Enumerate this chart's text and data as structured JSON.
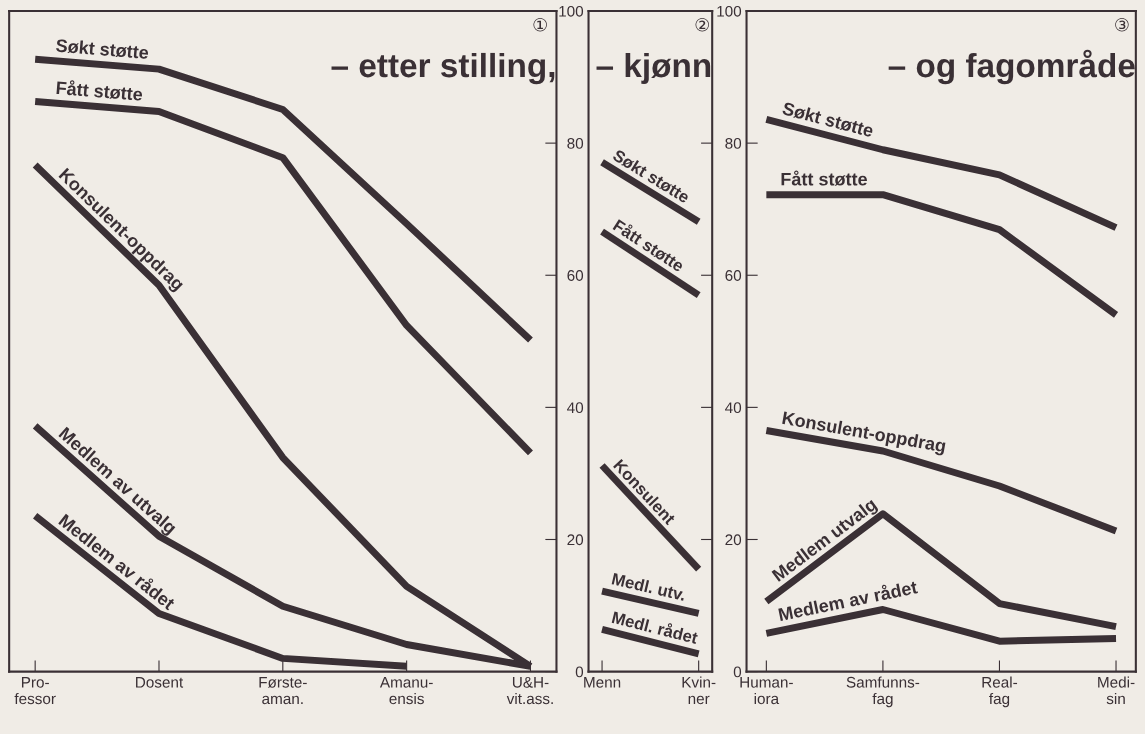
{
  "chart_data": [
    {
      "type": "line",
      "title": "– etter stilling,",
      "annotations": [
        "①"
      ],
      "categories": [
        "Pro-\nfessor",
        "Dosent",
        "Første-\naman.",
        "Amanu-\nensis",
        "U&H-\nvit.ass."
      ],
      "ylim": [
        0,
        100
      ],
      "yticks": [
        0,
        20,
        40,
        60,
        80,
        100
      ],
      "tick_labels": "x",
      "grid": false,
      "legend": false,
      "marker": "none",
      "line_style": "solid",
      "series": [
        {
          "name": "Søkt støtte",
          "color": "#3a3035",
          "values": [
            92.7,
            91.2,
            85.1,
            67.8,
            50.2
          ]
        },
        {
          "name": "Fått støtte",
          "color": "#3a3035",
          "values": [
            86.3,
            84.8,
            77.8,
            52.4,
            33.1
          ]
        },
        {
          "name": "Konsulent-oppdrag",
          "color": "#3a3035",
          "values": [
            76.7,
            58.5,
            32.4,
            12.9,
            0.8
          ]
        },
        {
          "name": "Medlem av utvalg",
          "color": "#3a3035",
          "values": [
            37.2,
            20.5,
            9.9,
            4.1,
            0.8
          ]
        },
        {
          "name": "Medlem av rådet",
          "color": "#3a3035",
          "values": [
            23.6,
            8.8,
            2.0,
            0.8,
            null
          ]
        }
      ]
    },
    {
      "type": "line",
      "title": "– kjønn",
      "annotations": [
        "②"
      ],
      "categories": [
        "Menn",
        "Kvin-\nner"
      ],
      "ylim": [
        0,
        100
      ],
      "yticks": [
        0,
        20,
        40,
        60,
        80,
        100
      ],
      "tick_labels": "xy",
      "grid": false,
      "legend": false,
      "marker": "none",
      "line_style": "solid",
      "series": [
        {
          "name": "Søkt støtte",
          "color": "#3a3035",
          "values": [
            77.1,
            68.1
          ]
        },
        {
          "name": "Fått støtte",
          "color": "#3a3035",
          "values": [
            66.6,
            57.0
          ]
        },
        {
          "name": "Konsulent",
          "color": "#3a3035",
          "values": [
            31.2,
            15.5
          ]
        },
        {
          "name": "Medl. utv.",
          "color": "#3a3035",
          "values": [
            12.2,
            8.8
          ]
        },
        {
          "name": "Medl. rådet",
          "color": "#3a3035",
          "values": [
            6.4,
            2.7
          ]
        }
      ]
    },
    {
      "type": "line",
      "title": "– og fagområde",
      "annotations": [
        "③"
      ],
      "categories": [
        "Human-\niora",
        "Samfunns-\nfag",
        "Real-\nfag",
        "Medi-\nsin"
      ],
      "ylim": [
        0,
        100
      ],
      "yticks": [
        0,
        20,
        40,
        60,
        80,
        100
      ],
      "tick_labels": "xy",
      "grid": false,
      "legend": false,
      "marker": "none",
      "line_style": "solid",
      "series": [
        {
          "name": "Søkt støtte",
          "color": "#3a3035",
          "values": [
            83.6,
            79.0,
            75.2,
            67.2
          ]
        },
        {
          "name": "Fått støtte",
          "color": "#3a3035",
          "values": [
            72.2,
            72.2,
            66.9,
            54.0
          ]
        },
        {
          "name": "Konsulent-oppdrag",
          "color": "#3a3035",
          "values": [
            36.5,
            33.4,
            28.1,
            21.3
          ]
        },
        {
          "name": "Medlem utvalg",
          "color": "#3a3035",
          "values": [
            10.6,
            23.9,
            10.3,
            6.8
          ]
        },
        {
          "name": "Medlem av rådet",
          "color": "#3a3035",
          "values": [
            5.8,
            9.4,
            4.6,
            5.0
          ]
        }
      ]
    }
  ]
}
